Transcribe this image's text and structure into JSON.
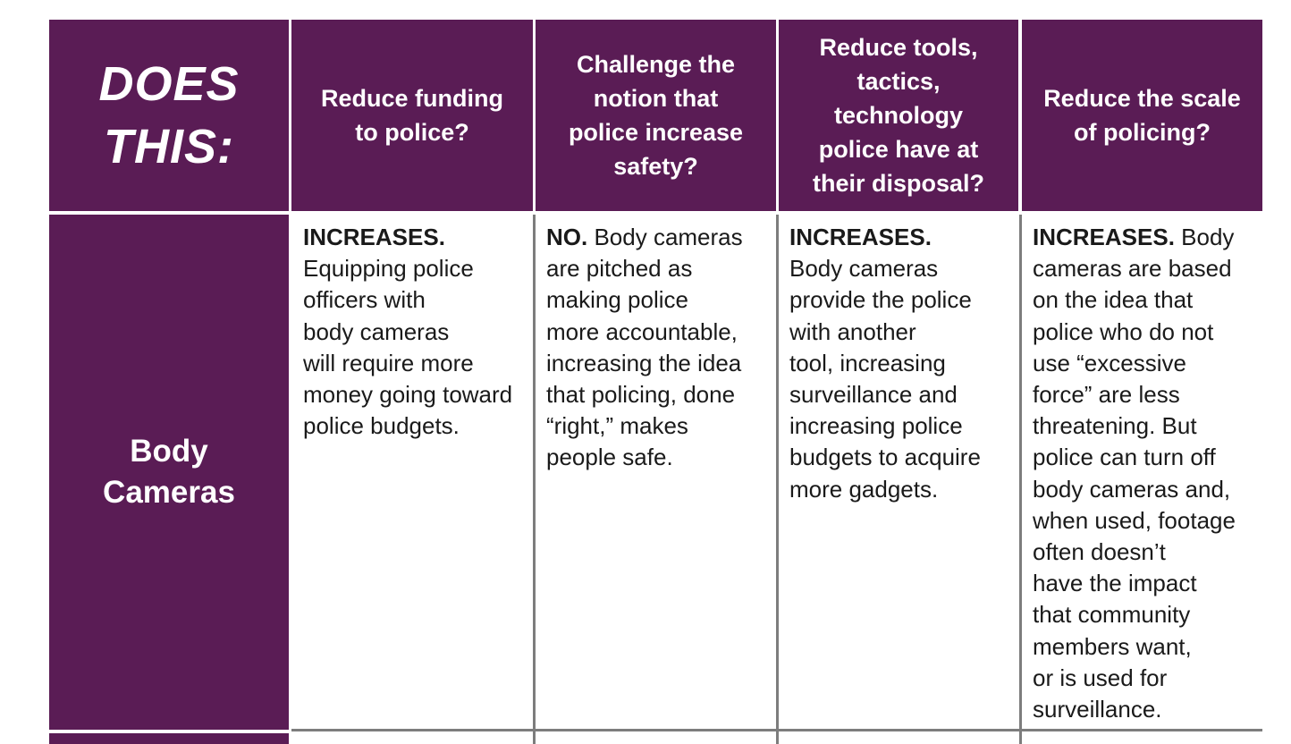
{
  "table": {
    "corner_label_lines": [
      "DOES",
      "THIS:"
    ],
    "columns": [
      {
        "lines": [
          "Reduce funding",
          "to police?"
        ]
      },
      {
        "lines": [
          "Challenge the",
          "notion that",
          "police increase",
          "safety?"
        ]
      },
      {
        "lines": [
          "Reduce tools,",
          "tactics,",
          "technology",
          "police have at",
          "their disposal?"
        ]
      },
      {
        "lines": [
          "Reduce the scale",
          "of policing?"
        ]
      }
    ],
    "rows": [
      {
        "label_lines": [
          "Body",
          "Cameras"
        ],
        "cells": [
          {
            "lead": "INCREASES.",
            "lines": [
              "Equipping police",
              "officers with",
              "body cameras",
              "will require more",
              "money going toward",
              "police budgets."
            ]
          },
          {
            "lead": "NO.",
            "first_line_rest": " Body cameras",
            "lines": [
              "are pitched as",
              "making police",
              "more accountable,",
              "increasing the idea",
              "that policing, done",
              "“right,” makes",
              "people safe."
            ]
          },
          {
            "lead": "INCREASES.",
            "lines": [
              "Body cameras",
              "provide the police",
              "with another",
              "tool, increasing",
              "surveillance and",
              "increasing police",
              "budgets to acquire",
              "more gadgets."
            ]
          },
          {
            "lead": "INCREASES.",
            "first_line_rest": " Body",
            "lines": [
              "cameras are based",
              "on the idea that",
              "police who do not",
              "use “excessive",
              "force” are less",
              "threatening. But",
              "police can turn off",
              "body cameras and,",
              "when used, footage",
              "often doesn’t",
              "have the impact",
              "that community",
              "members want,",
              "or is used for",
              "surveillance."
            ]
          }
        ]
      }
    ]
  },
  "colors": {
    "header_bg": "#5a1c55",
    "grid_line": "#7d7d7d",
    "body_text": "#1a1a1a"
  }
}
